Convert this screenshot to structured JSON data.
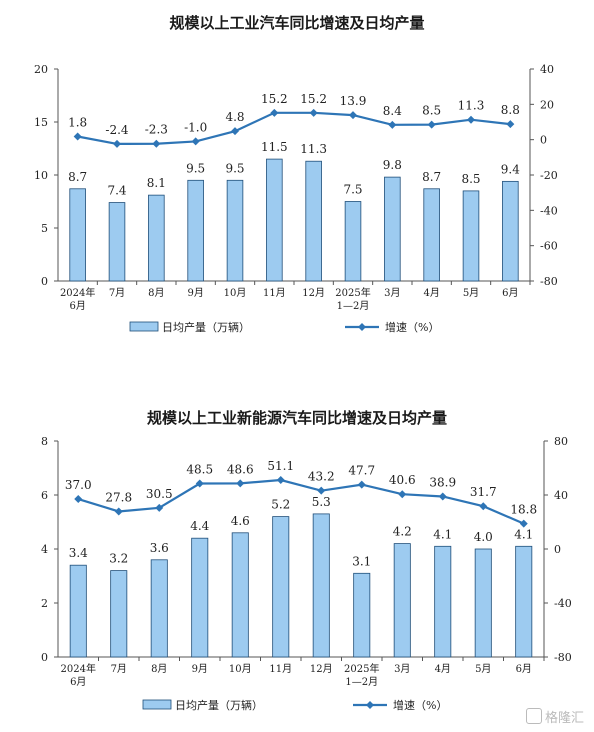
{
  "chart_data": [
    {
      "type": "bar",
      "title": "规模以上工业汽车同比增速及日均产量",
      "categories": [
        "2024年\n6月",
        "7月",
        "8月",
        "9月",
        "10月",
        "11月",
        "12月",
        "2025年\n1—2月",
        "3月",
        "4月",
        "5月",
        "6月"
      ],
      "series": [
        {
          "name": "日均产量（万辆）",
          "type": "bar",
          "axis": "left",
          "values": [
            8.7,
            7.4,
            8.1,
            9.5,
            9.5,
            11.5,
            11.3,
            7.5,
            9.8,
            8.7,
            8.5,
            9.4
          ]
        },
        {
          "name": "增速（%）",
          "type": "line",
          "axis": "right",
          "values": [
            1.8,
            -2.4,
            -2.3,
            -1.0,
            4.8,
            15.2,
            15.2,
            13.9,
            8.4,
            8.5,
            11.3,
            8.8
          ]
        }
      ],
      "ylim_left": [
        0,
        20
      ],
      "yticks_left": [
        0,
        5,
        10,
        15,
        20
      ],
      "ylim_right": [
        -80,
        40
      ],
      "yticks_right": [
        -80,
        -60,
        -40,
        -20,
        0,
        20,
        40
      ],
      "bar_color": "#9dcbf0",
      "line_color": "#2e75b6",
      "legend_position": "bottom"
    },
    {
      "type": "bar",
      "title": "规模以上工业新能源汽车同比增速及日均产量",
      "categories": [
        "2024年\n6月",
        "7月",
        "8月",
        "9月",
        "10月",
        "11月",
        "12月",
        "2025年\n1—2月",
        "3月",
        "4月",
        "5月",
        "6月"
      ],
      "series": [
        {
          "name": "日均产量（万辆）",
          "type": "bar",
          "axis": "left",
          "values": [
            3.4,
            3.2,
            3.6,
            4.4,
            4.6,
            5.2,
            5.3,
            3.1,
            4.2,
            4.1,
            4.0,
            4.1
          ]
        },
        {
          "name": "增速（%）",
          "type": "line",
          "axis": "right",
          "values": [
            37.0,
            27.8,
            30.5,
            48.5,
            48.6,
            51.1,
            43.2,
            47.7,
            40.6,
            38.9,
            31.7,
            18.8
          ]
        }
      ],
      "ylim_left": [
        0,
        8
      ],
      "yticks_left": [
        0,
        2,
        4,
        6,
        8
      ],
      "ylim_right": [
        -80,
        80
      ],
      "yticks_right": [
        -80,
        -40,
        0,
        40,
        80
      ],
      "bar_color": "#9dcbf0",
      "line_color": "#2e75b6",
      "legend_position": "bottom"
    }
  ],
  "watermark": {
    "text": "格隆汇"
  }
}
